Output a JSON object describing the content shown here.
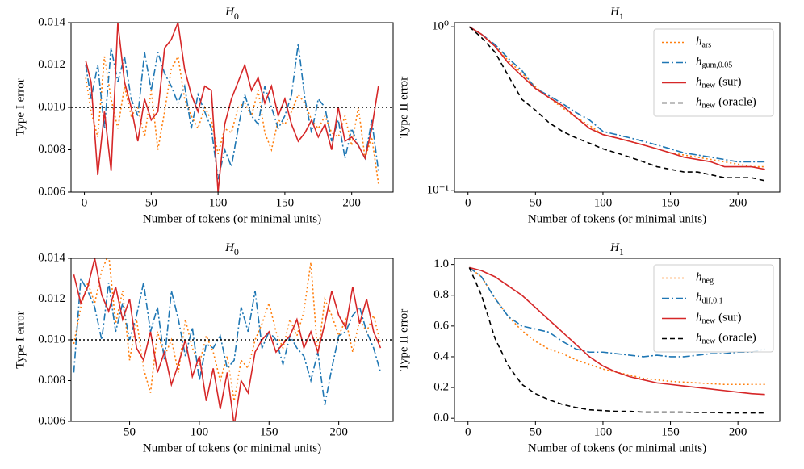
{
  "chart_data": [
    {
      "type": "line",
      "title": "H",
      "title_sub": "0",
      "xlabel": "Number of tokens (or minimal units)",
      "ylabel": "Type I error",
      "x": [
        1,
        5,
        10,
        15,
        20,
        25,
        30,
        35,
        40,
        45,
        50,
        55,
        60,
        65,
        70,
        75,
        80,
        85,
        90,
        95,
        100,
        105,
        110,
        115,
        120,
        125,
        130,
        135,
        140,
        145,
        150,
        155,
        160,
        165,
        170,
        175,
        180,
        185,
        190,
        195,
        200,
        205,
        210,
        215,
        220
      ],
      "xlim": [
        -10,
        231
      ],
      "xticks": [
        0,
        50,
        100,
        150,
        200
      ],
      "ylim": [
        0.006,
        0.014
      ],
      "yticks": [
        0.006,
        0.008,
        {
          "value": 0.01,
          "label": "0.010"
        },
        0.012,
        0.014
      ],
      "hline": 0.01,
      "log_y": false,
      "series": [
        {
          "name": "h",
          "subscript": "ars",
          "color": "#ff7f0e",
          "style": "dotted",
          "values": [
            0.0114,
            0.0098,
            0.0086,
            0.0124,
            0.0104,
            0.009,
            0.011,
            0.0096,
            0.01,
            0.0086,
            0.0108,
            0.008,
            0.0098,
            0.0118,
            0.0124,
            0.0104,
            0.0096,
            0.009,
            0.01,
            0.0094,
            0.0078,
            0.009,
            0.0088,
            0.01,
            0.0102,
            0.0096,
            0.0108,
            0.0088,
            0.008,
            0.0094,
            0.0092,
            0.0098,
            0.0106,
            0.0102,
            0.0094,
            0.009,
            0.0096,
            0.0088,
            0.0086,
            0.0096,
            0.0082,
            0.01,
            0.0076,
            0.0086,
            0.0064
          ]
        },
        {
          "name": "h",
          "subscript": "gum,0.05",
          "color": "#1f77b4",
          "style": "dashdot",
          "values": [
            0.012,
            0.0104,
            0.012,
            0.009,
            0.0128,
            0.0112,
            0.0124,
            0.0104,
            0.0096,
            0.0126,
            0.0108,
            0.0126,
            0.0116,
            0.011,
            0.0102,
            0.011,
            0.009,
            0.0106,
            0.0098,
            0.009,
            0.0066,
            0.008,
            0.0072,
            0.009,
            0.0106,
            0.0096,
            0.0092,
            0.011,
            0.01,
            0.009,
            0.0096,
            0.0106,
            0.013,
            0.0104,
            0.0088,
            0.0104,
            0.01,
            0.0084,
            0.0094,
            0.0076,
            0.009,
            0.0082,
            0.0076,
            0.0094,
            0.007
          ]
        },
        {
          "name": "h",
          "subscript": "new",
          "suffix": "(sur)",
          "color": "#d62728",
          "style": "solid",
          "values": [
            0.0122,
            0.0112,
            0.0068,
            0.0098,
            0.007,
            0.014,
            0.0112,
            0.01,
            0.0084,
            0.0104,
            0.0094,
            0.0098,
            0.0128,
            0.0132,
            0.014,
            0.0118,
            0.0106,
            0.0098,
            0.011,
            0.0108,
            0.006,
            0.0092,
            0.0104,
            0.0112,
            0.012,
            0.0108,
            0.0114,
            0.0102,
            0.011,
            0.0096,
            0.0104,
            0.0092,
            0.0084,
            0.0088,
            0.0094,
            0.0086,
            0.0092,
            0.008,
            0.01,
            0.0084,
            0.0086,
            0.0082,
            0.0076,
            0.009,
            0.011
          ]
        }
      ]
    },
    {
      "type": "line",
      "title": "H",
      "title_sub": "1",
      "xlabel": "Number of tokens (or minimal units)",
      "ylabel": "Type II error",
      "x": [
        1,
        10,
        20,
        30,
        40,
        50,
        60,
        70,
        80,
        90,
        100,
        110,
        120,
        130,
        140,
        150,
        160,
        170,
        180,
        190,
        200,
        210,
        220
      ],
      "xlim": [
        -10,
        231
      ],
      "xticks": [
        0,
        50,
        100,
        150,
        200
      ],
      "ylim": [
        0.098,
        1.06
      ],
      "yticks": [
        {
          "value": 0.1,
          "label": "10⁻¹"
        },
        {
          "value": 1,
          "label": "10⁰"
        }
      ],
      "log_y": true,
      "legend": "upper right",
      "series": [
        {
          "name": "h",
          "subscript": "ars",
          "color": "#ff7f0e",
          "style": "dotted",
          "values": [
            1.0,
            0.9,
            0.76,
            0.62,
            0.52,
            0.43,
            0.37,
            0.32,
            0.28,
            0.25,
            0.22,
            0.21,
            0.2,
            0.19,
            0.18,
            0.17,
            0.165,
            0.16,
            0.155,
            0.15,
            0.145,
            0.14,
            0.14
          ]
        },
        {
          "name": "h",
          "subscript": "gum,0.05",
          "color": "#1f77b4",
          "style": "dashdot",
          "values": [
            1.0,
            0.9,
            0.78,
            0.64,
            0.54,
            0.42,
            0.38,
            0.34,
            0.3,
            0.27,
            0.23,
            0.22,
            0.21,
            0.2,
            0.19,
            0.18,
            0.17,
            0.165,
            0.16,
            0.155,
            0.15,
            0.15,
            0.15
          ]
        },
        {
          "name": "h",
          "subscript": "new",
          "suffix": "(sur)",
          "color": "#d62728",
          "style": "solid",
          "values": [
            1.0,
            0.9,
            0.76,
            0.6,
            0.5,
            0.42,
            0.37,
            0.33,
            0.28,
            0.24,
            0.22,
            0.21,
            0.2,
            0.19,
            0.18,
            0.17,
            0.16,
            0.155,
            0.15,
            0.14,
            0.14,
            0.14,
            0.135
          ]
        },
        {
          "name": "h",
          "subscript": "new",
          "suffix": "(oracle)",
          "color": "#000000",
          "style": "dashed",
          "values": [
            1.0,
            0.86,
            0.7,
            0.5,
            0.36,
            0.31,
            0.26,
            0.23,
            0.21,
            0.195,
            0.18,
            0.17,
            0.16,
            0.15,
            0.14,
            0.135,
            0.13,
            0.13,
            0.125,
            0.12,
            0.12,
            0.12,
            0.115
          ]
        }
      ]
    },
    {
      "type": "line",
      "title": "H",
      "title_sub": "0",
      "xlabel": "Number of tokens (or minimal units)",
      "ylabel": "Type I error",
      "x": [
        10,
        15,
        20,
        25,
        30,
        35,
        40,
        45,
        50,
        55,
        60,
        65,
        70,
        75,
        80,
        85,
        90,
        95,
        100,
        105,
        110,
        115,
        120,
        125,
        130,
        135,
        140,
        145,
        150,
        155,
        160,
        165,
        170,
        175,
        180,
        185,
        190,
        195,
        200,
        205,
        210,
        215,
        220,
        225,
        230
      ],
      "xlim": [
        8,
        239
      ],
      "xticks": [
        50,
        100,
        150,
        200
      ],
      "ylim": [
        0.006,
        0.014
      ],
      "yticks": [
        0.006,
        0.008,
        {
          "value": 0.01,
          "label": "0.010"
        },
        0.012,
        0.014
      ],
      "hline": 0.01,
      "log_y": false,
      "series": [
        {
          "name": "h",
          "subscript": "neg",
          "color": "#ff7f0e",
          "style": "dotted",
          "values": [
            0.0098,
            0.0116,
            0.0128,
            0.0118,
            0.0134,
            0.0142,
            0.0108,
            0.0124,
            0.009,
            0.011,
            0.0086,
            0.0074,
            0.0104,
            0.0092,
            0.01,
            0.0084,
            0.011,
            0.0096,
            0.0088,
            0.0102,
            0.0094,
            0.008,
            0.0092,
            0.007,
            0.009,
            0.0086,
            0.01,
            0.0108,
            0.0118,
            0.0104,
            0.0096,
            0.011,
            0.0102,
            0.0114,
            0.0138,
            0.0092,
            0.012,
            0.0112,
            0.0102,
            0.011,
            0.0094,
            0.011,
            0.0104,
            0.0112,
            0.0098
          ]
        },
        {
          "name": "h",
          "subscript": "dif,0.1",
          "color": "#1f77b4",
          "style": "dashdot",
          "values": [
            0.0084,
            0.013,
            0.0124,
            0.0116,
            0.01,
            0.0128,
            0.0104,
            0.0118,
            0.01,
            0.0112,
            0.0128,
            0.0104,
            0.0116,
            0.009,
            0.0124,
            0.011,
            0.0092,
            0.0106,
            0.008,
            0.0098,
            0.0096,
            0.0102,
            0.0086,
            0.009,
            0.0116,
            0.0104,
            0.0124,
            0.0096,
            0.0104,
            0.01,
            0.0088,
            0.0102,
            0.0096,
            0.0092,
            0.008,
            0.0094,
            0.0068,
            0.0086,
            0.0102,
            0.0104,
            0.0112,
            0.0116,
            0.0104,
            0.0096,
            0.0084
          ]
        },
        {
          "name": "h",
          "subscript": "new",
          "suffix": "(sur)",
          "color": "#d62728",
          "style": "solid",
          "values": [
            0.0132,
            0.0118,
            0.0126,
            0.014,
            0.0122,
            0.0114,
            0.0126,
            0.011,
            0.012,
            0.0096,
            0.009,
            0.0104,
            0.0084,
            0.0094,
            0.0078,
            0.0088,
            0.01,
            0.0082,
            0.0092,
            0.007,
            0.0086,
            0.0066,
            0.0084,
            0.0058,
            0.008,
            0.0074,
            0.0094,
            0.01,
            0.0104,
            0.0094,
            0.0098,
            0.0102,
            0.011,
            0.0096,
            0.0104,
            0.0094,
            0.0108,
            0.0124,
            0.0112,
            0.0106,
            0.0126,
            0.0108,
            0.012,
            0.0104,
            0.0096
          ]
        }
      ]
    },
    {
      "type": "line",
      "title": "H",
      "title_sub": "1",
      "xlabel": "Number of tokens (or minimal units)",
      "ylabel": "Type II error",
      "x": [
        1,
        10,
        20,
        30,
        40,
        50,
        60,
        70,
        80,
        90,
        100,
        110,
        120,
        130,
        140,
        150,
        160,
        170,
        180,
        190,
        200,
        210,
        220
      ],
      "xlim": [
        -10,
        231
      ],
      "xticks": [
        0,
        50,
        100,
        150,
        200
      ],
      "ylim": [
        -0.02,
        1.04
      ],
      "yticks": [
        {
          "value": 0,
          "label": "0.0"
        },
        0.2,
        0.4,
        0.6,
        0.8,
        {
          "value": 1,
          "label": "1.0"
        }
      ],
      "log_y": false,
      "legend": "upper right",
      "series": [
        {
          "name": "h",
          "subscript": "neg",
          "color": "#ff7f0e",
          "style": "dotted",
          "values": [
            0.98,
            0.92,
            0.78,
            0.66,
            0.57,
            0.5,
            0.45,
            0.42,
            0.38,
            0.35,
            0.32,
            0.3,
            0.28,
            0.26,
            0.25,
            0.24,
            0.235,
            0.23,
            0.225,
            0.22,
            0.22,
            0.22,
            0.22
          ]
        },
        {
          "name": "h",
          "subscript": "dif,0.1",
          "color": "#1f77b4",
          "style": "dashdot",
          "values": [
            0.98,
            0.92,
            0.78,
            0.66,
            0.6,
            0.58,
            0.56,
            0.5,
            0.45,
            0.43,
            0.43,
            0.42,
            0.41,
            0.4,
            0.41,
            0.4,
            0.4,
            0.41,
            0.42,
            0.42,
            0.43,
            0.43,
            0.45
          ]
        },
        {
          "name": "h",
          "subscript": "new",
          "suffix": "(sur)",
          "color": "#d62728",
          "style": "solid",
          "values": [
            0.98,
            0.96,
            0.92,
            0.86,
            0.8,
            0.72,
            0.64,
            0.56,
            0.48,
            0.4,
            0.34,
            0.3,
            0.27,
            0.25,
            0.23,
            0.22,
            0.21,
            0.2,
            0.19,
            0.18,
            0.17,
            0.16,
            0.155
          ]
        },
        {
          "name": "h",
          "subscript": "new",
          "suffix": "(oracle)",
          "color": "#000000",
          "style": "dashed",
          "values": [
            0.98,
            0.8,
            0.52,
            0.34,
            0.22,
            0.16,
            0.12,
            0.09,
            0.07,
            0.055,
            0.05,
            0.045,
            0.045,
            0.04,
            0.04,
            0.04,
            0.04,
            0.038,
            0.038,
            0.035,
            0.035,
            0.035,
            0.035
          ]
        }
      ]
    }
  ]
}
